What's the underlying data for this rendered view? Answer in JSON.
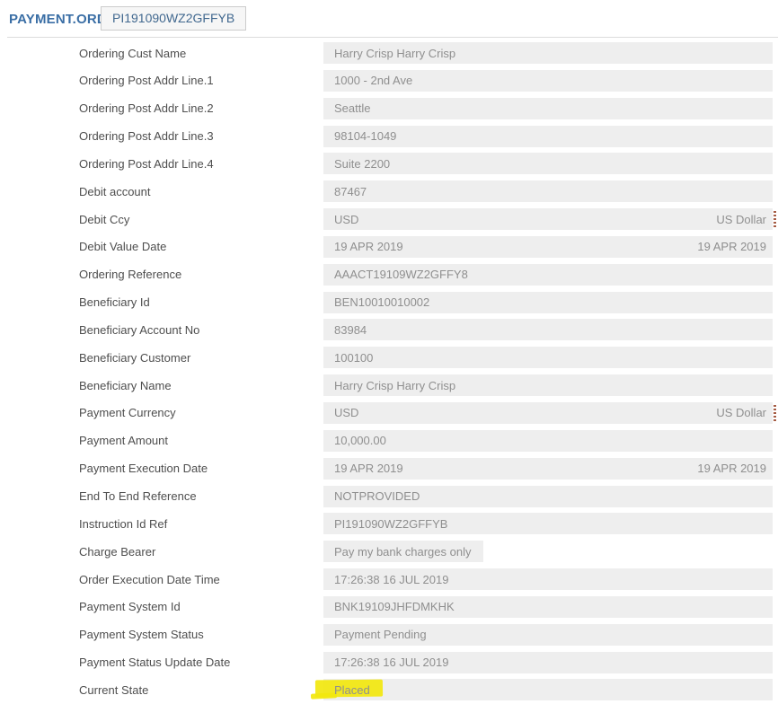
{
  "header": {
    "title": "PAYMENT.ORDER",
    "order_id": "PI191090WZ2GFFYB"
  },
  "colors": {
    "accent_blue": "#3a6ea5",
    "value_box_bg": "#eeeeee",
    "label_text": "#4e4e4e",
    "value_text": "#8f8f8f",
    "highlight_yellow": "#f2e70e",
    "menu_dots_icon": "#a65d45",
    "divider": "#dcdcdc"
  },
  "fields": [
    {
      "label": "Ordering Cust Name",
      "value": "Harry Crisp Harry Crisp"
    },
    {
      "label": "Ordering Post Addr Line.1",
      "value": "1000 - 2nd Ave"
    },
    {
      "label": "Ordering Post Addr Line.2",
      "value": "Seattle"
    },
    {
      "label": "Ordering Post Addr Line.3",
      "value": "98104-1049"
    },
    {
      "label": "Ordering Post Addr Line.4",
      "value": "Suite 2200"
    },
    {
      "label": "Debit account",
      "value": "87467"
    },
    {
      "label": "Debit Ccy",
      "value": "USD",
      "right_value": "US Dollar",
      "menu_icon": true
    },
    {
      "label": "Debit Value Date",
      "value": "19 APR 2019",
      "right_value": "19 APR 2019"
    },
    {
      "label": "Ordering Reference",
      "value": "AAACT19109WZ2GFFY8"
    },
    {
      "label": "Beneficiary Id",
      "value": "BEN10010010002"
    },
    {
      "label": "Beneficiary Account No",
      "value": "83984"
    },
    {
      "label": "Beneficiary Customer",
      "value": "100100"
    },
    {
      "label": "Beneficiary Name",
      "value": "Harry Crisp Harry Crisp"
    },
    {
      "label": "Payment Currency",
      "value": "USD",
      "right_value": "US Dollar",
      "menu_icon": true
    },
    {
      "label": "Payment Amount",
      "value": "10,000.00"
    },
    {
      "label": "Payment Execution Date",
      "value": "19 APR 2019",
      "right_value": "19 APR 2019"
    },
    {
      "label": "End To End Reference",
      "value": "NOTPROVIDED"
    },
    {
      "label": "Instruction Id Ref",
      "value": "PI191090WZ2GFFYB"
    },
    {
      "label": "Charge Bearer",
      "value": "Pay my bank charges only",
      "short_box": true
    },
    {
      "label": "Order Execution Date Time",
      "value": "17:26:38 16 JUL 2019"
    },
    {
      "label": "Payment System Id",
      "value": "BNK19109JHFDMKHK"
    },
    {
      "label": "Payment System Status",
      "value": "Payment Pending"
    },
    {
      "label": "Payment Status Update Date",
      "value": "17:26:38 16 JUL 2019"
    },
    {
      "label": "Current State",
      "value": "Placed",
      "highlight": true
    }
  ]
}
